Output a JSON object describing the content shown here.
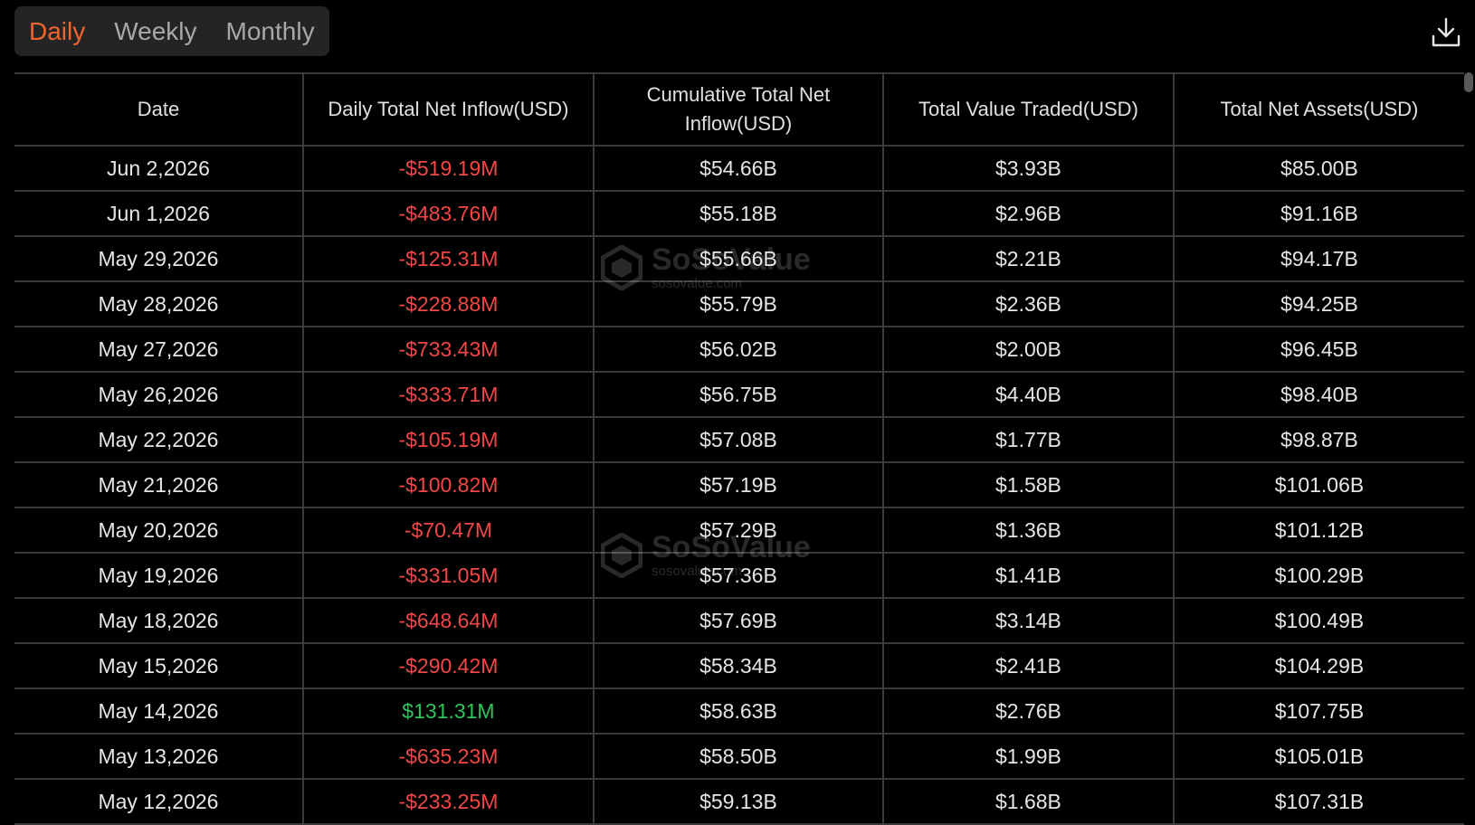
{
  "tabs": [
    {
      "label": "Daily",
      "active": true
    },
    {
      "label": "Weekly",
      "active": false
    },
    {
      "label": "Monthly",
      "active": false
    }
  ],
  "download_icon": "download-icon",
  "table": {
    "headers": [
      "Date",
      "Daily Total Net Inflow(USD)",
      "Cumulative Total Net Inflow(USD)",
      "Total Value Traded(USD)",
      "Total Net Assets(USD)"
    ],
    "rows": [
      {
        "date": "Jun 2,2026",
        "inflow": "-$519.19M",
        "sign": "neg",
        "cumulative": "$54.66B",
        "traded": "$3.93B",
        "assets": "$85.00B"
      },
      {
        "date": "Jun 1,2026",
        "inflow": "-$483.76M",
        "sign": "neg",
        "cumulative": "$55.18B",
        "traded": "$2.96B",
        "assets": "$91.16B"
      },
      {
        "date": "May 29,2026",
        "inflow": "-$125.31M",
        "sign": "neg",
        "cumulative": "$55.66B",
        "traded": "$2.21B",
        "assets": "$94.17B"
      },
      {
        "date": "May 28,2026",
        "inflow": "-$228.88M",
        "sign": "neg",
        "cumulative": "$55.79B",
        "traded": "$2.36B",
        "assets": "$94.25B"
      },
      {
        "date": "May 27,2026",
        "inflow": "-$733.43M",
        "sign": "neg",
        "cumulative": "$56.02B",
        "traded": "$2.00B",
        "assets": "$96.45B"
      },
      {
        "date": "May 26,2026",
        "inflow": "-$333.71M",
        "sign": "neg",
        "cumulative": "$56.75B",
        "traded": "$4.40B",
        "assets": "$98.40B"
      },
      {
        "date": "May 22,2026",
        "inflow": "-$105.19M",
        "sign": "neg",
        "cumulative": "$57.08B",
        "traded": "$1.77B",
        "assets": "$98.87B"
      },
      {
        "date": "May 21,2026",
        "inflow": "-$100.82M",
        "sign": "neg",
        "cumulative": "$57.19B",
        "traded": "$1.58B",
        "assets": "$101.06B"
      },
      {
        "date": "May 20,2026",
        "inflow": "-$70.47M",
        "sign": "neg",
        "cumulative": "$57.29B",
        "traded": "$1.36B",
        "assets": "$101.12B"
      },
      {
        "date": "May 19,2026",
        "inflow": "-$331.05M",
        "sign": "neg",
        "cumulative": "$57.36B",
        "traded": "$1.41B",
        "assets": "$100.29B"
      },
      {
        "date": "May 18,2026",
        "inflow": "-$648.64M",
        "sign": "neg",
        "cumulative": "$57.69B",
        "traded": "$3.14B",
        "assets": "$100.49B"
      },
      {
        "date": "May 15,2026",
        "inflow": "-$290.42M",
        "sign": "neg",
        "cumulative": "$58.34B",
        "traded": "$2.41B",
        "assets": "$104.29B"
      },
      {
        "date": "May 14,2026",
        "inflow": "$131.31M",
        "sign": "pos",
        "cumulative": "$58.63B",
        "traded": "$2.76B",
        "assets": "$107.75B"
      },
      {
        "date": "May 13,2026",
        "inflow": "-$635.23M",
        "sign": "neg",
        "cumulative": "$58.50B",
        "traded": "$1.99B",
        "assets": "$105.01B"
      },
      {
        "date": "May 12,2026",
        "inflow": "-$233.25M",
        "sign": "neg",
        "cumulative": "$59.13B",
        "traded": "$1.68B",
        "assets": "$107.31B"
      }
    ]
  },
  "watermark": {
    "brand": "SoSoValue",
    "url": "sosovalue.com"
  },
  "colors": {
    "accent": "#f0642d",
    "negative": "#f04848",
    "positive": "#2fc45a",
    "background": "#000000",
    "tab_bg": "#242424",
    "grid": "#3a3a3a"
  }
}
